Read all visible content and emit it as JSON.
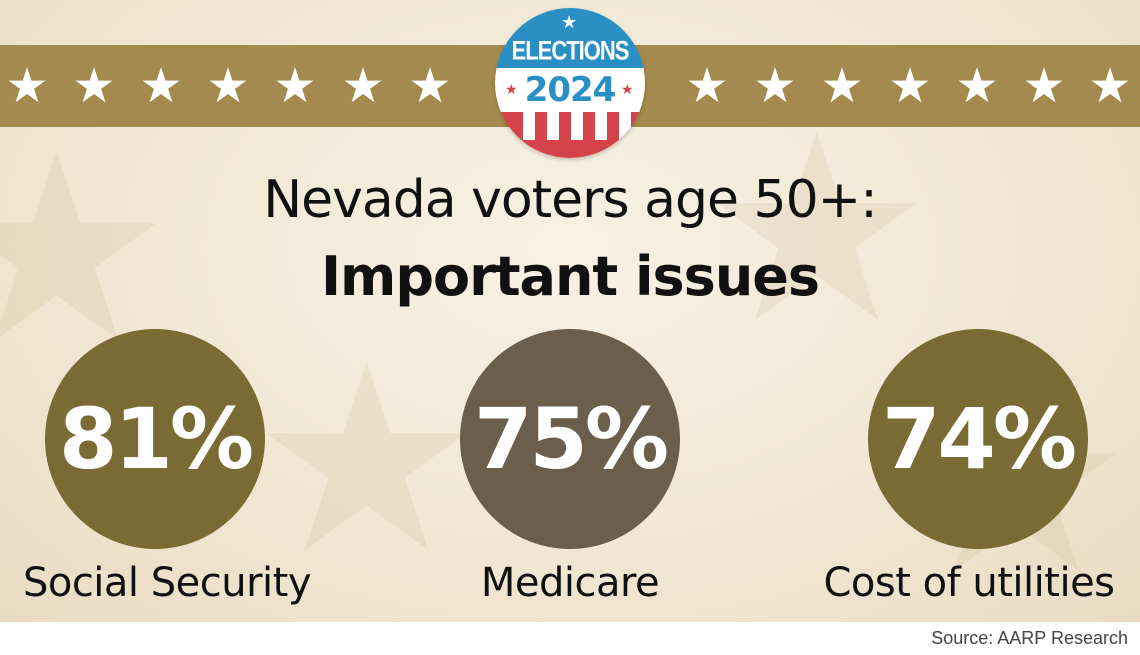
{
  "logo": {
    "line1": "ELECTIONS",
    "line2": "2024"
  },
  "title": {
    "line1": "Nevada voters age 50+:",
    "line2": "Important issues"
  },
  "chart_data": {
    "type": "bar",
    "title": "Nevada voters age 50+: Important issues",
    "categories": [
      "Social Security",
      "Medicare",
      "Cost of utilities"
    ],
    "values": [
      81,
      75,
      74
    ],
    "value_labels": [
      "81%",
      "75%",
      "74%"
    ],
    "colors": [
      "#7a6a33",
      "#6b5f4b",
      "#7a6a33"
    ],
    "unit": "%"
  },
  "source": "Source: AARP Research"
}
